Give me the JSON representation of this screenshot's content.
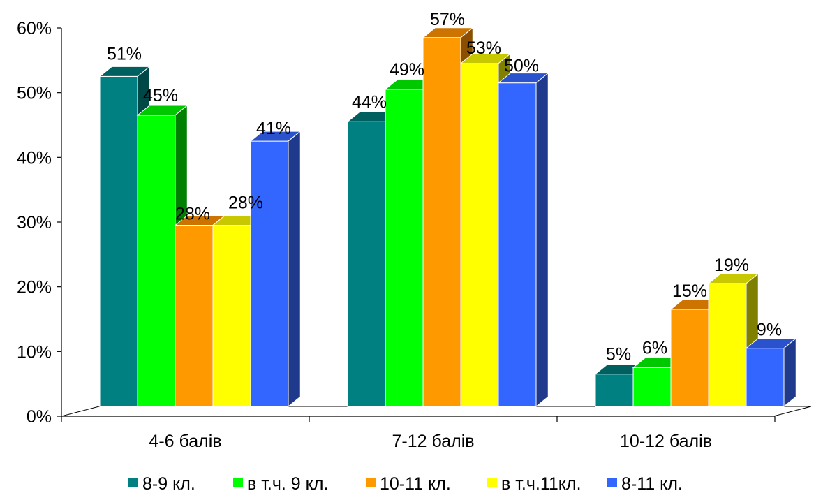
{
  "chart_data": {
    "type": "bar",
    "style": "3d-clustered",
    "categories": [
      "4-6 балів",
      "7-12 балів",
      "10-12 балів"
    ],
    "series": [
      {
        "name": "8-9 кл.",
        "values": [
          51,
          44,
          5
        ],
        "color": "#008080",
        "top_color": "#00605f",
        "side_color": "#004847"
      },
      {
        "name": "в т.ч. 9 кл.",
        "values": [
          45,
          49,
          6
        ],
        "color": "#00ff00",
        "top_color": "#00c800",
        "side_color": "#008000"
      },
      {
        "name": "10-11 кл.",
        "values": [
          28,
          57,
          15
        ],
        "color": "#ff9900",
        "top_color": "#cc7300",
        "side_color": "#8a4f00"
      },
      {
        "name": "в т.ч.11кл.",
        "values": [
          28,
          53,
          19
        ],
        "color": "#ffff00",
        "top_color": "#c8c800",
        "side_color": "#808000"
      },
      {
        "name": "8-11 кл.",
        "values": [
          41,
          50,
          9
        ],
        "color": "#3366ff",
        "top_color": "#2a52cc",
        "side_color": "#1f3a8c"
      }
    ],
    "data_labels": [
      [
        "51%",
        "44%",
        "5%"
      ],
      [
        "45%",
        "49%",
        "6%"
      ],
      [
        "28%",
        "57%",
        "15%"
      ],
      [
        "28%",
        "53%",
        "19%"
      ],
      [
        "41%",
        "50%",
        "9%"
      ]
    ],
    "y_ticks": [
      "0%",
      "10%",
      "20%",
      "30%",
      "40%",
      "50%",
      "60%"
    ],
    "ylim": [
      0,
      60
    ],
    "legend_position": "bottom",
    "grid": false
  }
}
